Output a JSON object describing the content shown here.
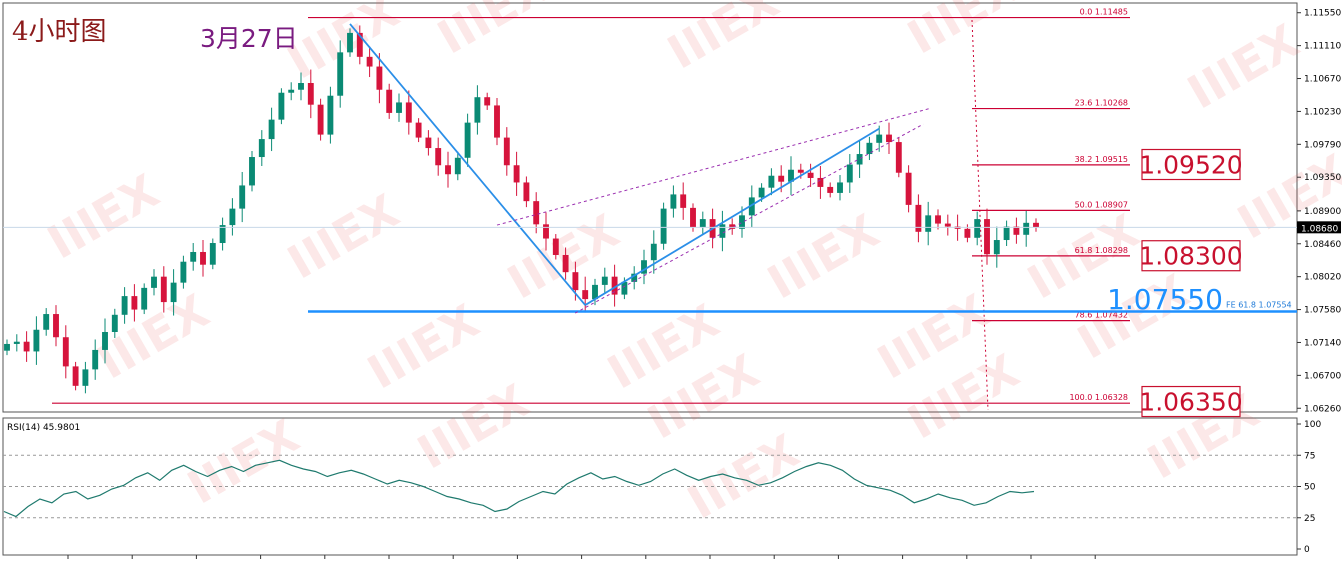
{
  "chart_data": [
    {
      "type": "candlestick",
      "title": "4小时图",
      "annotation_date": "3月27日",
      "price_axis_ticks": [
        "1.11550",
        "1.11110",
        "1.10670",
        "1.10230",
        "1.09790",
        "1.09350",
        "1.08900",
        "1.08460",
        "1.08020",
        "1.07580",
        "1.07140",
        "1.06700",
        "1.06260"
      ],
      "price_range": [
        1.0621,
        1.1168
      ],
      "current_price": "1.08680",
      "fibonacci_retracement": [
        {
          "label": "0.0",
          "price": "1.11485"
        },
        {
          "label": "23.6",
          "price": "1.10268"
        },
        {
          "label": "38.2",
          "price": "1.09515"
        },
        {
          "label": "50.0",
          "price": "1.08907"
        },
        {
          "label": "61.8",
          "price": "1.08298"
        },
        {
          "label": "78.6",
          "price": "1.07432"
        },
        {
          "label": "100.0",
          "price": "1.06328"
        }
      ],
      "fibonacci_expansion": {
        "label": "FE 61.8",
        "price": "1.07554"
      },
      "key_levels": [
        {
          "text": "1.09520",
          "price": 1.0952,
          "boxed": true
        },
        {
          "text": "1.08300",
          "price": 1.083,
          "boxed": true
        },
        {
          "text": "1.07550",
          "price": 1.0755,
          "boxed": false
        },
        {
          "text": "1.06350",
          "price": 1.0635,
          "boxed": true
        }
      ],
      "close_prices": [
        1.0712,
        1.0715,
        1.0702,
        1.0731,
        1.0752,
        1.0721,
        1.0682,
        1.0656,
        1.0678,
        1.0704,
        1.0728,
        1.0751,
        1.0776,
        1.0758,
        1.0787,
        1.0802,
        1.0768,
        1.0794,
        1.0822,
        1.0835,
        1.0818,
        1.0847,
        1.0871,
        1.0893,
        1.0924,
        1.0962,
        1.0986,
        1.1012,
        1.1048,
        1.1052,
        1.1061,
        1.1032,
        1.0992,
        1.1044,
        1.1102,
        1.1128,
        1.1096,
        1.1083,
        1.1052,
        1.1021,
        1.1035,
        1.1008,
        1.0988,
        1.0974,
        1.0951,
        1.0939,
        1.0961,
        1.1008,
        1.1042,
        1.1031,
        1.0988,
        1.0951,
        1.0928,
        1.0903,
        1.0872,
        1.0853,
        1.0831,
        1.0808,
        1.0784,
        1.0772,
        1.0791,
        1.0802,
        1.0778,
        1.0795,
        1.0806,
        1.0824,
        1.0846,
        1.0893,
        1.0912,
        1.0894,
        1.0868,
        1.0879,
        1.0854,
        1.0872,
        1.0866,
        1.0884,
        1.0908,
        1.0921,
        1.0937,
        1.0929,
        1.0945,
        1.0941,
        1.0934,
        1.0922,
        1.0914,
        1.0928,
        1.0952,
        1.0966,
        1.0981,
        1.0992,
        1.0982,
        1.0941,
        1.0898,
        1.0862,
        1.0884,
        1.0873,
        1.0869,
        1.0866,
        1.0854,
        1.0879,
        1.0832,
        1.0851,
        1.0869,
        1.0858,
        1.0874,
        1.0868
      ],
      "rsi": {
        "label": "RSI(14) 45.9801",
        "ticks": [
          "100",
          "75",
          "50",
          "25",
          "0"
        ],
        "range": [
          0,
          100
        ],
        "levels": [
          25,
          50,
          75
        ],
        "values": [
          30,
          26,
          34,
          40,
          37,
          44,
          46,
          40,
          43,
          48,
          51,
          57,
          61,
          55,
          63,
          67,
          62,
          58,
          63,
          66,
          62,
          67,
          69,
          71,
          67,
          64,
          62,
          58,
          61,
          63,
          60,
          56,
          52,
          55,
          53,
          50,
          46,
          42,
          40,
          37,
          35,
          30,
          32,
          38,
          42,
          46,
          44,
          52,
          57,
          61,
          56,
          58,
          54,
          51,
          54,
          60,
          64,
          59,
          55,
          58,
          60,
          57,
          55,
          51,
          53,
          57,
          62,
          66,
          69,
          67,
          63,
          56,
          51,
          49,
          47,
          43,
          37,
          40,
          44,
          41,
          39,
          35,
          37,
          42,
          46,
          45,
          46
        ]
      }
    }
  ]
}
